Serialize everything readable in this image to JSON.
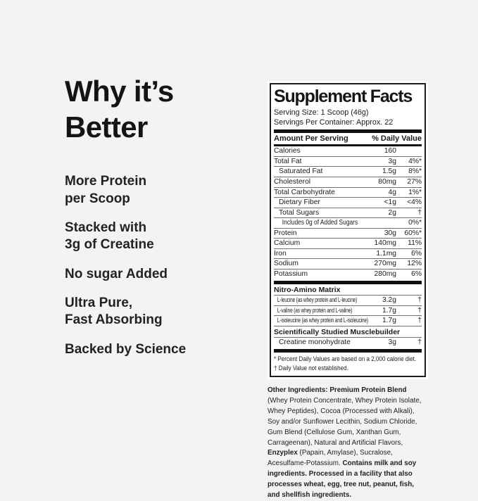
{
  "colors": {
    "background": "#f3f3f1",
    "panel": "#ffffff",
    "ink": "#1b1b19"
  },
  "left_panel": {
    "heading": "Why it’s\nBetter",
    "bullets": [
      "More Protein\nper Scoop",
      "Stacked with\n3g of Creatine",
      "No sugar Added",
      "Ultra Pure,\nFast Absorbing",
      "Backed by Science"
    ]
  },
  "label": {
    "title": "Supplement Facts",
    "serving_size": "Serving Size: 1 Scoop (46g)",
    "servings_per_container": "Servings Per Container: Approx. 22",
    "columns": {
      "left": "Amount Per Serving",
      "right": "% Daily Value"
    },
    "entries": [
      {
        "kind": "row",
        "name": "Calories",
        "amount": "160",
        "dv": "",
        "indent": 0
      },
      {
        "kind": "row",
        "name": "Total Fat",
        "amount": "3g",
        "dv": "4%*",
        "indent": 0
      },
      {
        "kind": "row",
        "name": "Saturated Fat",
        "amount": "1.5g",
        "dv": "8%*",
        "indent": 1
      },
      {
        "kind": "row",
        "name": "Cholesterol",
        "amount": "80mg",
        "dv": "27%",
        "indent": 0
      },
      {
        "kind": "row",
        "name": "Total Carbohydrate",
        "amount": "4g",
        "dv": "1%*",
        "indent": 0
      },
      {
        "kind": "row",
        "name": "Dietary Fiber",
        "amount": "<1g",
        "dv": "<4%",
        "indent": 1
      },
      {
        "kind": "row",
        "name": "Total Sugars",
        "amount": "2g",
        "dv": "†",
        "indent": 1
      },
      {
        "kind": "row",
        "name": "Includes 0g of Added Sugars",
        "amount": "",
        "dv": "0%*",
        "indent": 2
      },
      {
        "kind": "row",
        "name": "Protein",
        "amount": "30g",
        "dv": "60%*",
        "indent": 0
      },
      {
        "kind": "row",
        "name": "Calcium",
        "amount": "140mg",
        "dv": "11%",
        "indent": 0
      },
      {
        "kind": "row",
        "name": "Iron",
        "amount": "1.1mg",
        "dv": "6%",
        "indent": 0
      },
      {
        "kind": "row",
        "name": "Sodium",
        "amount": "270mg",
        "dv": "12%",
        "indent": 0
      },
      {
        "kind": "row",
        "name": "Potassium",
        "amount": "280mg",
        "dv": "6%",
        "indent": 0
      },
      {
        "kind": "bar"
      },
      {
        "kind": "section",
        "name": "Nitro-Amino Matrix"
      },
      {
        "kind": "row",
        "name": "L-leucine (as whey protein and L-leucine)",
        "amount": "3.2g",
        "dv": "†",
        "indent": 1
      },
      {
        "kind": "row",
        "name": "L-valine (as whey protein and L-valine)",
        "amount": "1.7g",
        "dv": "†",
        "indent": 1
      },
      {
        "kind": "row",
        "name": "L-isoleucine (as whey protein and L-isoleucine)",
        "amount": "1.7g",
        "dv": "†",
        "indent": 1
      },
      {
        "kind": "section",
        "name": "Scientifically Studied Musclebuilder"
      },
      {
        "kind": "row",
        "name": "Creatine monohydrate",
        "amount": "3g",
        "dv": "†",
        "indent": 1
      }
    ],
    "footnotes": [
      "* Percent Daily Values are based on a 2,000 calorie diet.",
      "† Daily Value not established."
    ]
  },
  "other_ingredients": {
    "segments": [
      {
        "text": "Other Ingredients: ",
        "bold": true
      },
      {
        "text": "Premium Protein Blend",
        "bold": true
      },
      {
        "text": " (Whey Protein Concentrate, Whey Protein Isolate, Whey Peptides), Cocoa (Processed with Alkali), Soy and/or Sunflower Lecithin, Sodium Chloride, Gum Blend (Cellulose Gum, Xanthan Gum, Carrageenan), Natural and Artificial Flavors, ",
        "bold": false
      },
      {
        "text": "Enzyplex",
        "bold": true
      },
      {
        "text": " (Papain, Amylase), Sucralose, Acesulfame-Potassium. ",
        "bold": false
      },
      {
        "text": "Contains milk and soy ingredients. Processed in a facility that also processes wheat, egg, tree nut, peanut, fish, and shellfish ingredients.",
        "bold": true
      }
    ]
  }
}
